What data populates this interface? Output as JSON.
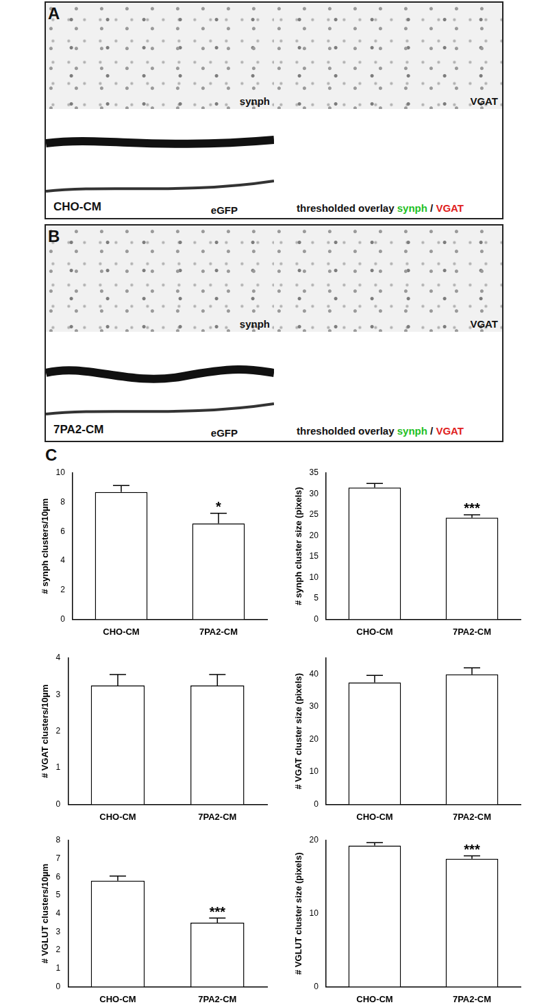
{
  "panels": [
    {
      "label": "A",
      "condition": "CHO-CM",
      "images": [
        "synph",
        "VGAT",
        "eGFP"
      ],
      "overlay": {
        "title": "thresholded overlay",
        "separator": "/",
        "channels": [
          {
            "name": "synph",
            "color": "#22c022"
          },
          {
            "name": "VGAT",
            "color": "#e02020"
          }
        ]
      }
    },
    {
      "label": "B",
      "condition": "7PA2-CM",
      "images": [
        "synph",
        "VGAT",
        "eGFP"
      ],
      "overlay": {
        "title": "thresholded overlay",
        "separator": "/",
        "channels": [
          {
            "name": "synph",
            "color": "#22c022"
          },
          {
            "name": "VGAT",
            "color": "#e02020"
          }
        ]
      }
    }
  ],
  "section_label": "C",
  "chart_data": [
    {
      "type": "bar",
      "y_label": "# synph clusters/10µm",
      "categories": [
        "CHO-CM",
        "7PA2-CM"
      ],
      "values": [
        8.7,
        6.55
      ],
      "errors": [
        0.45,
        0.7
      ],
      "color": "#ffffff",
      "ylim": [
        0,
        10
      ],
      "yticks": [
        0,
        2,
        4,
        6,
        8,
        10
      ],
      "grid": false,
      "annotations": [
        {
          "category": "7PA2-CM",
          "text": "*"
        }
      ]
    },
    {
      "type": "bar",
      "y_label": "# synph cluster size (pixels)",
      "categories": [
        "CHO-CM",
        "7PA2-CM"
      ],
      "values": [
        31.5,
        24.3
      ],
      "errors": [
        1.0,
        0.7
      ],
      "color": "#ffffff",
      "ylim": [
        0,
        35
      ],
      "yticks": [
        0,
        5,
        10,
        15,
        20,
        25,
        30,
        35
      ],
      "grid": false,
      "annotations": [
        {
          "category": "7PA2-CM",
          "text": "***"
        }
      ]
    },
    {
      "type": "bar",
      "y_label": "# VGAT clusters/10µm",
      "categories": [
        "CHO-CM",
        "7PA2-CM"
      ],
      "values": [
        3.25,
        3.25
      ],
      "errors": [
        0.3,
        0.3
      ],
      "color": "#ffffff",
      "ylim": [
        0,
        4
      ],
      "yticks": [
        0,
        1,
        2,
        3,
        4
      ],
      "grid": false
    },
    {
      "type": "bar",
      "y_label": "# VGAT cluster size (pixels)",
      "categories": [
        "CHO-CM",
        "7PA2-CM"
      ],
      "values": [
        37.5,
        40
      ],
      "errors": [
        2.2,
        2.0
      ],
      "color": "#ffffff",
      "ylim": [
        0,
        45
      ],
      "yticks": [
        0,
        10,
        20,
        30,
        40
      ],
      "grid": false
    },
    {
      "type": "bar",
      "y_label": "# VGLUT clusters/10µm",
      "categories": [
        "CHO-CM",
        "7PA2-CM"
      ],
      "values": [
        5.8,
        3.5
      ],
      "errors": [
        0.25,
        0.25
      ],
      "color": "#ffffff",
      "ylim": [
        0,
        8
      ],
      "yticks": [
        0,
        1,
        2,
        3,
        4,
        5,
        6,
        7,
        8
      ],
      "grid": false,
      "annotations": [
        {
          "category": "7PA2-CM",
          "text": "***"
        }
      ]
    },
    {
      "type": "bar",
      "y_label": "# VGLUT cluster size (pixels)",
      "categories": [
        "CHO-CM",
        "7PA2-CM"
      ],
      "values": [
        19.3,
        17.5
      ],
      "errors": [
        0.4,
        0.4
      ],
      "color": "#ffffff",
      "ylim": [
        0,
        20
      ],
      "yticks": [
        0,
        10,
        20
      ],
      "grid": false,
      "annotations": [
        {
          "category": "7PA2-CM",
          "text": "***"
        }
      ]
    }
  ]
}
